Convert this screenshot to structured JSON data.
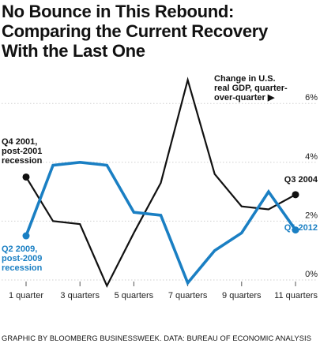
{
  "title": "No Bounce in This Rebound:\nComparing the Current Recovery\nWith the Last One",
  "source": "GRAPHIC BY BLOOMBERG BUSINESSWEEK. DATA: BUREAU OF ECONOMIC ANALYSIS",
  "colors": {
    "series_2001": "#111111",
    "series_2009": "#1a7fc3"
  },
  "chart_data": {
    "type": "line",
    "ylabel": [
      "Change in U.S.",
      "real GDP, quarter-",
      "over-quarter ▶"
    ],
    "ylim": [
      0,
      7
    ],
    "yticks": [
      {
        "value": 0,
        "label": "0%"
      },
      {
        "value": 2,
        "label": "2%"
      },
      {
        "value": 4,
        "label": "4%"
      },
      {
        "value": 6,
        "label": "6%"
      }
    ],
    "x": [
      1,
      2,
      3,
      4,
      5,
      6,
      7,
      8,
      9,
      10,
      11
    ],
    "xticks": [
      {
        "value": 1,
        "label": "1 quarter"
      },
      {
        "value": 3,
        "label": "3 quarters"
      },
      {
        "value": 5,
        "label": "5 quarters"
      },
      {
        "value": 7,
        "label": "7 quarters"
      },
      {
        "value": 9,
        "label": "9 quarters"
      },
      {
        "value": 11,
        "label": "11 quarters"
      }
    ],
    "series": [
      {
        "color": "#111111",
        "values": [
          3.5,
          2.0,
          1.9,
          -0.2,
          1.6,
          3.3,
          6.8,
          3.6,
          2.5,
          2.4,
          2.9
        ],
        "start_label": [
          "Q4 2001,",
          "post-2001",
          "recession"
        ],
        "end_label": [
          "Q3 2004"
        ]
      },
      {
        "color": "#1a7fc3",
        "values": [
          1.5,
          3.9,
          4.0,
          3.9,
          2.3,
          2.2,
          -0.1,
          1.0,
          1.6,
          3.0,
          1.7
        ],
        "start_label": [
          "Q2 2009,",
          "post-2009",
          "recession"
        ],
        "end_label": [
          "Q1 2012"
        ]
      }
    ]
  }
}
